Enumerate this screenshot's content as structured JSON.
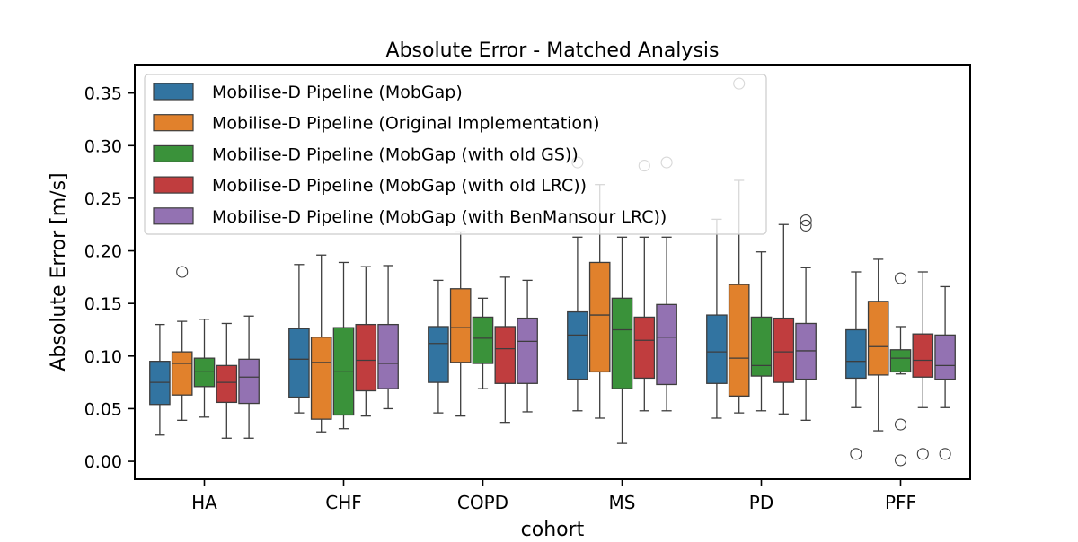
{
  "chart_data": {
    "type": "box",
    "title": "Absolute Error - Matched Analysis",
    "xlabel": "cohort",
    "ylabel": "Absolute Error [m/s]",
    "ylim": [
      -0.017,
      0.377
    ],
    "yticks": [
      0.0,
      0.05,
      0.1,
      0.15,
      0.2,
      0.25,
      0.3,
      0.35
    ],
    "ytick_labels": [
      "0.00",
      "0.05",
      "0.10",
      "0.15",
      "0.20",
      "0.25",
      "0.30",
      "0.35"
    ],
    "categories": [
      "HA",
      "CHF",
      "COPD",
      "MS",
      "PD",
      "PFF"
    ],
    "grid": false,
    "legend_position": "top-left",
    "series": [
      {
        "name": "Mobilise-D Pipeline (MobGap)",
        "color": "#3274a1",
        "boxes": [
          {
            "q1": 0.054,
            "median": 0.075,
            "q3": 0.095,
            "whisker_low": 0.025,
            "whisker_high": 0.13,
            "outliers": []
          },
          {
            "q1": 0.061,
            "median": 0.097,
            "q3": 0.126,
            "whisker_low": 0.046,
            "whisker_high": 0.187,
            "outliers": []
          },
          {
            "q1": 0.075,
            "median": 0.112,
            "q3": 0.128,
            "whisker_low": 0.046,
            "whisker_high": 0.172,
            "outliers": []
          },
          {
            "q1": 0.078,
            "median": 0.12,
            "q3": 0.142,
            "whisker_low": 0.048,
            "whisker_high": 0.213,
            "outliers": [
              0.284
            ]
          },
          {
            "q1": 0.074,
            "median": 0.104,
            "q3": 0.139,
            "whisker_low": 0.041,
            "whisker_high": 0.23,
            "outliers": []
          },
          {
            "q1": 0.079,
            "median": 0.095,
            "q3": 0.125,
            "whisker_low": 0.051,
            "whisker_high": 0.18,
            "outliers": [
              0.007
            ]
          }
        ]
      },
      {
        "name": "Mobilise-D Pipeline (Original Implementation)",
        "color": "#e1812c",
        "boxes": [
          {
            "q1": 0.063,
            "median": 0.093,
            "q3": 0.104,
            "whisker_low": 0.039,
            "whisker_high": 0.133,
            "outliers": [
              0.18
            ]
          },
          {
            "q1": 0.04,
            "median": 0.094,
            "q3": 0.118,
            "whisker_low": 0.028,
            "whisker_high": 0.196,
            "outliers": []
          },
          {
            "q1": 0.094,
            "median": 0.127,
            "q3": 0.164,
            "whisker_low": 0.043,
            "whisker_high": 0.218,
            "outliers": []
          },
          {
            "q1": 0.085,
            "median": 0.139,
            "q3": 0.189,
            "whisker_low": 0.041,
            "whisker_high": 0.263,
            "outliers": []
          },
          {
            "q1": 0.062,
            "median": 0.098,
            "q3": 0.168,
            "whisker_low": 0.046,
            "whisker_high": 0.267,
            "outliers": [
              0.359
            ]
          },
          {
            "q1": 0.082,
            "median": 0.109,
            "q3": 0.152,
            "whisker_low": 0.029,
            "whisker_high": 0.192,
            "outliers": []
          }
        ]
      },
      {
        "name": "Mobilise-D Pipeline (MobGap (with old GS))",
        "color": "#3a923a",
        "boxes": [
          {
            "q1": 0.071,
            "median": 0.085,
            "q3": 0.098,
            "whisker_low": 0.042,
            "whisker_high": 0.135,
            "outliers": []
          },
          {
            "q1": 0.044,
            "median": 0.085,
            "q3": 0.127,
            "whisker_low": 0.031,
            "whisker_high": 0.189,
            "outliers": []
          },
          {
            "q1": 0.093,
            "median": 0.117,
            "q3": 0.137,
            "whisker_low": 0.069,
            "whisker_high": 0.155,
            "outliers": []
          },
          {
            "q1": 0.069,
            "median": 0.125,
            "q3": 0.155,
            "whisker_low": 0.017,
            "whisker_high": 0.213,
            "outliers": []
          },
          {
            "q1": 0.081,
            "median": 0.091,
            "q3": 0.137,
            "whisker_low": 0.048,
            "whisker_high": 0.199,
            "outliers": []
          },
          {
            "q1": 0.085,
            "median": 0.098,
            "q3": 0.106,
            "whisker_low": 0.083,
            "whisker_high": 0.128,
            "outliers": [
              0.174,
              0.035,
              0.001
            ]
          }
        ]
      },
      {
        "name": "Mobilise-D Pipeline (MobGap (with old LRC))",
        "color": "#c03d3e",
        "boxes": [
          {
            "q1": 0.056,
            "median": 0.075,
            "q3": 0.091,
            "whisker_low": 0.022,
            "whisker_high": 0.131,
            "outliers": []
          },
          {
            "q1": 0.067,
            "median": 0.096,
            "q3": 0.13,
            "whisker_low": 0.043,
            "whisker_high": 0.185,
            "outliers": []
          },
          {
            "q1": 0.074,
            "median": 0.107,
            "q3": 0.128,
            "whisker_low": 0.037,
            "whisker_high": 0.175,
            "outliers": []
          },
          {
            "q1": 0.079,
            "median": 0.115,
            "q3": 0.137,
            "whisker_low": 0.048,
            "whisker_high": 0.213,
            "outliers": [
              0.281
            ]
          },
          {
            "q1": 0.075,
            "median": 0.104,
            "q3": 0.136,
            "whisker_low": 0.045,
            "whisker_high": 0.225,
            "outliers": []
          },
          {
            "q1": 0.08,
            "median": 0.096,
            "q3": 0.121,
            "whisker_low": 0.051,
            "whisker_high": 0.18,
            "outliers": [
              0.007
            ]
          }
        ]
      },
      {
        "name": "Mobilise-D Pipeline (MobGap (with BenMansour LRC))",
        "color": "#9372b2",
        "boxes": [
          {
            "q1": 0.055,
            "median": 0.08,
            "q3": 0.097,
            "whisker_low": 0.022,
            "whisker_high": 0.138,
            "outliers": []
          },
          {
            "q1": 0.069,
            "median": 0.093,
            "q3": 0.13,
            "whisker_low": 0.05,
            "whisker_high": 0.186,
            "outliers": []
          },
          {
            "q1": 0.074,
            "median": 0.114,
            "q3": 0.136,
            "whisker_low": 0.047,
            "whisker_high": 0.172,
            "outliers": []
          },
          {
            "q1": 0.073,
            "median": 0.118,
            "q3": 0.149,
            "whisker_low": 0.048,
            "whisker_high": 0.213,
            "outliers": [
              0.284
            ]
          },
          {
            "q1": 0.078,
            "median": 0.105,
            "q3": 0.131,
            "whisker_low": 0.039,
            "whisker_high": 0.184,
            "outliers": [
              0.229,
              0.224
            ]
          },
          {
            "q1": 0.078,
            "median": 0.091,
            "q3": 0.12,
            "whisker_low": 0.051,
            "whisker_high": 0.166,
            "outliers": [
              0.007
            ]
          }
        ]
      }
    ]
  }
}
